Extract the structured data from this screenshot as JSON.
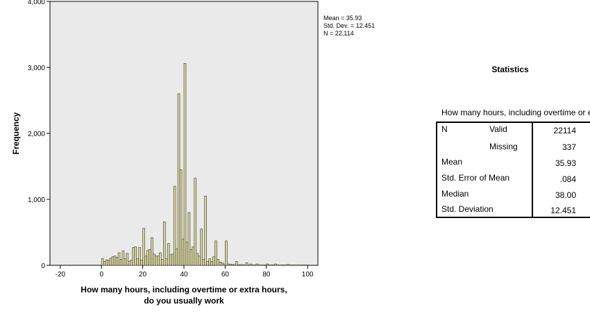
{
  "chart_data": {
    "type": "bar",
    "title": "",
    "xlabel_line1": "How many hours, including overtime or extra hours,",
    "xlabel_line2": "do you  usually work",
    "ylabel": "Frequency",
    "xlim": [
      -25,
      105
    ],
    "ylim": [
      0,
      4000
    ],
    "x_ticks": [
      "-20",
      "0",
      "20",
      "40",
      "60",
      "80",
      "100"
    ],
    "x_tick_values": [
      -20,
      0,
      20,
      40,
      60,
      80,
      100
    ],
    "y_ticks": [
      "0",
      "1,000",
      "2,000",
      "3,000",
      "4,000"
    ],
    "y_tick_values": [
      0,
      1000,
      2000,
      3000,
      4000
    ],
    "bin_width": 1,
    "bar_color": "#d8d4a8",
    "bar_edge_color": "#3a3a1e",
    "plot_bg": "#eaeaea",
    "grid": false,
    "bins": [
      {
        "x": 0,
        "v": 100
      },
      {
        "x": 1,
        "v": 60
      },
      {
        "x": 2,
        "v": 80
      },
      {
        "x": 3,
        "v": 80
      },
      {
        "x": 4,
        "v": 110
      },
      {
        "x": 5,
        "v": 130
      },
      {
        "x": 6,
        "v": 140
      },
      {
        "x": 7,
        "v": 120
      },
      {
        "x": 8,
        "v": 190
      },
      {
        "x": 9,
        "v": 90
      },
      {
        "x": 10,
        "v": 220
      },
      {
        "x": 11,
        "v": 100
      },
      {
        "x": 12,
        "v": 180
      },
      {
        "x": 13,
        "v": 60
      },
      {
        "x": 14,
        "v": 80
      },
      {
        "x": 15,
        "v": 270
      },
      {
        "x": 16,
        "v": 280
      },
      {
        "x": 17,
        "v": 100
      },
      {
        "x": 18,
        "v": 270
      },
      {
        "x": 19,
        "v": 80
      },
      {
        "x": 20,
        "v": 560
      },
      {
        "x": 21,
        "v": 140
      },
      {
        "x": 22,
        "v": 230
      },
      {
        "x": 23,
        "v": 240
      },
      {
        "x": 24,
        "v": 420
      },
      {
        "x": 25,
        "v": 170
      },
      {
        "x": 26,
        "v": 140
      },
      {
        "x": 27,
        "v": 140
      },
      {
        "x": 28,
        "v": 190
      },
      {
        "x": 29,
        "v": 90
      },
      {
        "x": 30,
        "v": 660
      },
      {
        "x": 31,
        "v": 100
      },
      {
        "x": 32,
        "v": 330
      },
      {
        "x": 33,
        "v": 160
      },
      {
        "x": 34,
        "v": 170
      },
      {
        "x": 35,
        "v": 1200
      },
      {
        "x": 36,
        "v": 250
      },
      {
        "x": 37,
        "v": 2600
      },
      {
        "x": 38,
        "v": 1450
      },
      {
        "x": 39,
        "v": 400
      },
      {
        "x": 40,
        "v": 3060
      },
      {
        "x": 41,
        "v": 350
      },
      {
        "x": 42,
        "v": 800
      },
      {
        "x": 43,
        "v": 240
      },
      {
        "x": 44,
        "v": 280
      },
      {
        "x": 45,
        "v": 1320
      },
      {
        "x": 46,
        "v": 180
      },
      {
        "x": 47,
        "v": 140
      },
      {
        "x": 48,
        "v": 550
      },
      {
        "x": 49,
        "v": 90
      },
      {
        "x": 50,
        "v": 1050
      },
      {
        "x": 51,
        "v": 60
      },
      {
        "x": 52,
        "v": 100
      },
      {
        "x": 53,
        "v": 60
      },
      {
        "x": 54,
        "v": 130
      },
      {
        "x": 55,
        "v": 370
      },
      {
        "x": 56,
        "v": 90
      },
      {
        "x": 57,
        "v": 50
      },
      {
        "x": 58,
        "v": 40
      },
      {
        "x": 59,
        "v": 20
      },
      {
        "x": 60,
        "v": 370
      },
      {
        "x": 61,
        "v": 20
      },
      {
        "x": 62,
        "v": 15
      },
      {
        "x": 63,
        "v": 15
      },
      {
        "x": 64,
        "v": 10
      },
      {
        "x": 65,
        "v": 60
      },
      {
        "x": 66,
        "v": 10
      },
      {
        "x": 67,
        "v": 10
      },
      {
        "x": 68,
        "v": 10
      },
      {
        "x": 69,
        "v": 5
      },
      {
        "x": 70,
        "v": 40
      },
      {
        "x": 71,
        "v": 5
      },
      {
        "x": 72,
        "v": 20
      },
      {
        "x": 73,
        "v": 5
      },
      {
        "x": 74,
        "v": 5
      },
      {
        "x": 75,
        "v": 20
      },
      {
        "x": 76,
        "v": 5
      },
      {
        "x": 77,
        "v": 5
      },
      {
        "x": 78,
        "v": 5
      },
      {
        "x": 79,
        "v": 5
      },
      {
        "x": 80,
        "v": 20
      },
      {
        "x": 81,
        "v": 5
      },
      {
        "x": 82,
        "v": 5
      },
      {
        "x": 83,
        "v": 5
      },
      {
        "x": 84,
        "v": 20
      },
      {
        "x": 85,
        "v": 5
      },
      {
        "x": 86,
        "v": 5
      },
      {
        "x": 87,
        "v": 5
      },
      {
        "x": 88,
        "v": 5
      },
      {
        "x": 89,
        "v": 5
      },
      {
        "x": 90,
        "v": 15
      },
      {
        "x": 91,
        "v": 5
      },
      {
        "x": 92,
        "v": 5
      },
      {
        "x": 93,
        "v": 5
      },
      {
        "x": 94,
        "v": 5
      },
      {
        "x": 95,
        "v": 5
      },
      {
        "x": 96,
        "v": 5
      },
      {
        "x": 97,
        "v": 5
      },
      {
        "x": 98,
        "v": 5
      },
      {
        "x": 99,
        "v": 5
      }
    ],
    "legend": {
      "mean": "Mean = 35.93",
      "std": "Std. Dev. = 12.451",
      "n": "N = 22,114"
    }
  },
  "statistics": {
    "title": "Statistics",
    "caption": "How many hours, including overtime or extra hours, do you  usually work",
    "rows": [
      {
        "label": "N",
        "sublabel": "Valid",
        "value": "22114"
      },
      {
        "label": "",
        "sublabel": "Missing",
        "value": "337"
      },
      {
        "label": "Mean",
        "sublabel": "",
        "value": "35.93"
      },
      {
        "label": "Std. Error of Mean",
        "sublabel": "",
        "value": ".084"
      },
      {
        "label": "Median",
        "sublabel": "",
        "value": "38.00"
      },
      {
        "label": "Std. Deviation",
        "sublabel": "",
        "value": "12.451"
      }
    ]
  }
}
